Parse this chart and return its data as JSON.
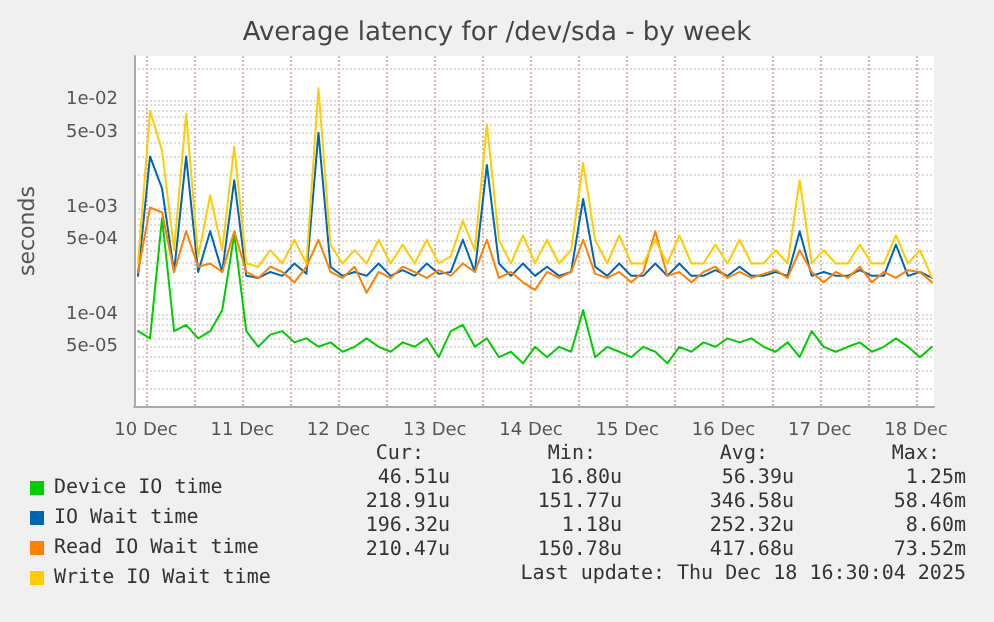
{
  "chart_data": {
    "type": "line",
    "title": "Average latency for /dev/sda - by week",
    "ylabel": "seconds",
    "x": [
      "2025-12-10T10:00",
      "2025-12-10T13:00",
      "2025-12-10T16:00",
      "2025-12-10T19:00",
      "2025-12-10T22:00",
      "2025-12-11T01:00",
      "2025-12-11T04:00",
      "2025-12-11T07:00",
      "2025-12-11T10:00",
      "2025-12-11T13:00",
      "2025-12-11T16:00",
      "2025-12-11T19:00",
      "2025-12-11T22:00",
      "2025-12-12T01:00",
      "2025-12-12T04:00",
      "2025-12-12T07:00",
      "2025-12-12T10:00",
      "2025-12-12T13:00",
      "2025-12-12T16:00",
      "2025-12-12T19:00",
      "2025-12-12T22:00",
      "2025-12-13T01:00",
      "2025-12-13T04:00",
      "2025-12-13T07:00",
      "2025-12-13T10:00",
      "2025-12-13T13:00",
      "2025-12-13T16:00",
      "2025-12-13T19:00",
      "2025-12-13T22:00",
      "2025-12-14T01:00",
      "2025-12-14T04:00",
      "2025-12-14T07:00",
      "2025-12-14T10:00",
      "2025-12-14T13:00",
      "2025-12-14T16:00",
      "2025-12-14T19:00",
      "2025-12-14T22:00",
      "2025-12-15T01:00",
      "2025-12-15T04:00",
      "2025-12-15T07:00",
      "2025-12-15T10:00",
      "2025-12-15T13:00",
      "2025-12-15T16:00",
      "2025-12-15T19:00",
      "2025-12-15T22:00",
      "2025-12-16T01:00",
      "2025-12-16T04:00",
      "2025-12-16T07:00",
      "2025-12-16T10:00",
      "2025-12-16T13:00",
      "2025-12-16T16:00",
      "2025-12-16T19:00",
      "2025-12-16T22:00",
      "2025-12-17T01:00",
      "2025-12-17T04:00",
      "2025-12-17T07:00",
      "2025-12-17T10:00",
      "2025-12-17T13:00",
      "2025-12-17T16:00",
      "2025-12-17T19:00",
      "2025-12-17T22:00",
      "2025-12-18T01:00",
      "2025-12-18T04:00",
      "2025-12-18T07:00",
      "2025-12-18T10:00",
      "2025-12-18T13:00",
      "2025-12-18T16:00"
    ],
    "series": [
      {
        "name": "Device IO time",
        "color": "#00cc00",
        "values": [
          7e-05,
          6e-05,
          0.0008,
          7e-05,
          8e-05,
          6e-05,
          7e-05,
          0.00011,
          0.00056,
          7e-05,
          5e-05,
          6.5e-05,
          7e-05,
          5.5e-05,
          6e-05,
          5e-05,
          5.5e-05,
          4.5e-05,
          5e-05,
          6e-05,
          5e-05,
          4.5e-05,
          5.5e-05,
          5e-05,
          6e-05,
          4e-05,
          7e-05,
          8e-05,
          5e-05,
          6e-05,
          4e-05,
          4.5e-05,
          3.5e-05,
          5e-05,
          4e-05,
          5e-05,
          4.5e-05,
          0.00011,
          4e-05,
          5e-05,
          4.5e-05,
          4e-05,
          5e-05,
          4.5e-05,
          3.5e-05,
          5e-05,
          4.5e-05,
          5.5e-05,
          5e-05,
          6e-05,
          5.5e-05,
          6e-05,
          5e-05,
          4.5e-05,
          5.5e-05,
          4e-05,
          7e-05,
          5e-05,
          4.5e-05,
          5e-05,
          5.5e-05,
          4.5e-05,
          5e-05,
          6e-05,
          5e-05,
          4e-05,
          5e-05
        ]
      },
      {
        "name": "IO Wait time",
        "color": "#0066b3",
        "values": [
          0.00023,
          0.003,
          0.0015,
          0.00025,
          0.003,
          0.00025,
          0.0006,
          0.00025,
          0.0018,
          0.00023,
          0.00022,
          0.00025,
          0.00023,
          0.0003,
          0.00024,
          0.005,
          0.00028,
          0.00023,
          0.00025,
          0.00023,
          0.0003,
          0.00023,
          0.00026,
          0.00023,
          0.0003,
          0.00024,
          0.00025,
          0.0005,
          0.00025,
          0.0025,
          0.0003,
          0.00023,
          0.0003,
          0.00023,
          0.00028,
          0.00023,
          0.00025,
          0.0012,
          0.00028,
          0.00023,
          0.0003,
          0.00023,
          0.00023,
          0.0003,
          0.00023,
          0.0003,
          0.00023,
          0.00023,
          0.00026,
          0.00023,
          0.00028,
          0.00023,
          0.00023,
          0.00025,
          0.00023,
          0.0006,
          0.00023,
          0.00025,
          0.00023,
          0.00023,
          0.00026,
          0.00023,
          0.00023,
          0.00045,
          0.00023,
          0.00025,
          0.00022
        ]
      },
      {
        "name": "Read IO Wait time",
        "color": "#ff8000",
        "values": [
          0.00025,
          0.001,
          0.0009,
          0.00025,
          0.0006,
          0.00028,
          0.0003,
          0.00025,
          0.0006,
          0.00025,
          0.00022,
          0.00028,
          0.00025,
          0.0002,
          0.00028,
          0.0005,
          0.00025,
          0.00022,
          0.00028,
          0.00016,
          0.00025,
          0.00022,
          0.00028,
          0.00025,
          0.00022,
          0.00026,
          0.00023,
          0.0003,
          0.00025,
          0.0005,
          0.00022,
          0.00025,
          0.0002,
          0.00017,
          0.00025,
          0.00022,
          0.00025,
          0.0005,
          0.00024,
          0.00022,
          0.00025,
          0.0002,
          0.00025,
          0.0006,
          0.00023,
          0.00025,
          0.0002,
          0.00025,
          0.00028,
          0.00022,
          0.00025,
          0.00022,
          0.00024,
          0.00026,
          0.00022,
          0.0004,
          0.00025,
          0.0002,
          0.00025,
          0.00022,
          0.00028,
          0.0002,
          0.00025,
          0.00022,
          0.00026,
          0.00025,
          0.0002
        ]
      },
      {
        "name": "Write IO Wait time",
        "color": "#ffcc00",
        "values": [
          0.0003,
          0.008,
          0.0034,
          0.0004,
          0.0075,
          0.00035,
          0.0013,
          0.0004,
          0.0037,
          0.0003,
          0.00028,
          0.0004,
          0.0003,
          0.0005,
          0.0003,
          0.013,
          0.00045,
          0.0003,
          0.0004,
          0.0003,
          0.0005,
          0.0003,
          0.00045,
          0.0003,
          0.0005,
          0.0003,
          0.00035,
          0.00075,
          0.0004,
          0.006,
          0.0005,
          0.0003,
          0.00055,
          0.0003,
          0.0005,
          0.0003,
          0.0004,
          0.0026,
          0.0005,
          0.0003,
          0.00055,
          0.0003,
          0.0003,
          0.0005,
          0.0003,
          0.00055,
          0.0003,
          0.0003,
          0.00045,
          0.0003,
          0.0005,
          0.0003,
          0.0003,
          0.0004,
          0.0003,
          0.0018,
          0.0003,
          0.0004,
          0.0003,
          0.0003,
          0.00045,
          0.0003,
          0.0003,
          0.00055,
          0.0003,
          0.0004,
          0.00022
        ]
      }
    ],
    "xlim": [
      "2025-12-10T09:00",
      "2025-12-18T16:30"
    ],
    "xticks": [
      {
        "value": "2025-12-10T12:00",
        "label": "10 Dec"
      },
      {
        "value": "2025-12-11T00:00",
        "label": null
      },
      {
        "value": "2025-12-11T12:00",
        "label": "11 Dec"
      },
      {
        "value": "2025-12-12T00:00",
        "label": null
      },
      {
        "value": "2025-12-12T12:00",
        "label": "12 Dec"
      },
      {
        "value": "2025-12-13T00:00",
        "label": null
      },
      {
        "value": "2025-12-13T12:00",
        "label": "13 Dec"
      },
      {
        "value": "2025-12-14T00:00",
        "label": null
      },
      {
        "value": "2025-12-14T12:00",
        "label": "14 Dec"
      },
      {
        "value": "2025-12-15T00:00",
        "label": null
      },
      {
        "value": "2025-12-15T12:00",
        "label": "15 Dec"
      },
      {
        "value": "2025-12-16T00:00",
        "label": null
      },
      {
        "value": "2025-12-16T12:00",
        "label": "16 Dec"
      },
      {
        "value": "2025-12-17T00:00",
        "label": null
      },
      {
        "value": "2025-12-17T12:00",
        "label": "17 Dec"
      },
      {
        "value": "2025-12-18T00:00",
        "label": null
      },
      {
        "value": "2025-12-18T12:00",
        "label": "18 Dec"
      }
    ],
    "ylim": [
      1.4e-05,
      0.026
    ],
    "yticks": [
      {
        "value": 2e-05,
        "label": null
      },
      {
        "value": 3e-05,
        "label": null
      },
      {
        "value": 4e-05,
        "label": null
      },
      {
        "value": 5e-05,
        "label": "5e-05"
      },
      {
        "value": 6e-05,
        "label": null
      },
      {
        "value": 7e-05,
        "label": null
      },
      {
        "value": 8e-05,
        "label": null
      },
      {
        "value": 9e-05,
        "label": null
      },
      {
        "value": 0.0001,
        "label": "1e-04"
      },
      {
        "value": 0.0002,
        "label": null
      },
      {
        "value": 0.0003,
        "label": null
      },
      {
        "value": 0.0004,
        "label": null
      },
      {
        "value": 0.0005,
        "label": "5e-04"
      },
      {
        "value": 0.0006,
        "label": null
      },
      {
        "value": 0.0007,
        "label": null
      },
      {
        "value": 0.0008,
        "label": null
      },
      {
        "value": 0.0009,
        "label": null
      },
      {
        "value": 0.001,
        "label": "1e-03"
      },
      {
        "value": 0.002,
        "label": null
      },
      {
        "value": 0.003,
        "label": null
      },
      {
        "value": 0.004,
        "label": null
      },
      {
        "value": 0.005,
        "label": "5e-03"
      },
      {
        "value": 0.006,
        "label": null
      },
      {
        "value": 0.007,
        "label": null
      },
      {
        "value": 0.008,
        "label": null
      },
      {
        "value": 0.009,
        "label": null
      },
      {
        "value": 0.01,
        "label": "1e-02"
      },
      {
        "value": 0.02,
        "label": null
      }
    ],
    "log": "y",
    "grid": true,
    "legend": "bottom left",
    "marker": "none",
    "annotations": [
      "Cur:",
      "Min:",
      "Avg:",
      "Max:",
      "46.51u",
      "16.80u",
      "56.39u",
      "1.25m",
      "218.91u",
      "151.77u",
      "346.58u",
      "58.46m",
      "196.32u",
      "1.18u",
      "252.32u",
      "8.60m",
      "210.47u",
      "150.78u",
      "417.68u",
      "73.52m",
      "Last update: Thu Dec 18 16:30:04 2025"
    ]
  }
}
